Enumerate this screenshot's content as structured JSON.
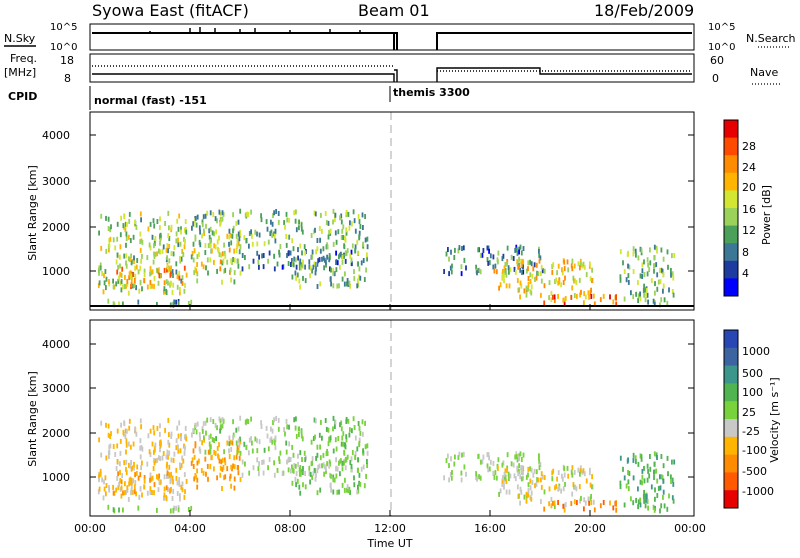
{
  "header": {
    "station": "Syowa East (fitACF)",
    "beam": "Beam 01",
    "date": "18/Feb/2009"
  },
  "strip": {
    "nsky_label": "N.Sky",
    "nsky_ticks": [
      "10^5",
      "10^0"
    ],
    "nsearch_label": "N.Search",
    "freq_label_1": "Freq.",
    "freq_label_2": "[MHz]",
    "freq_ticks": [
      "18",
      "8"
    ],
    "nave_label": "Nave",
    "nave_ticks": [
      "60",
      "0"
    ],
    "cpid_label": "CPID",
    "cpid_1": "normal (fast) -151",
    "cpid_2": "themis 3300"
  },
  "panels": {
    "ylabel": "Slant Range [km]",
    "yticks": [
      "4000",
      "3000",
      "2000",
      "1000"
    ],
    "xticks": [
      "00:00",
      "04:00",
      "08:00",
      "12:00",
      "16:00",
      "20:00",
      "00:00"
    ],
    "xlabel": "Time UT"
  },
  "power_bar": {
    "label": "Power [dB]",
    "ticks": [
      "28",
      "24",
      "20",
      "16",
      "12",
      "8",
      "4"
    ],
    "colors": [
      "#e60000",
      "#ff4b00",
      "#ff8c00",
      "#ffb400",
      "#d2e632",
      "#9bd25a",
      "#4ba05a",
      "#3c7896",
      "#1e3ca0",
      "#0000ff"
    ]
  },
  "velocity_bar": {
    "label": "Velocity [m s⁻¹]",
    "ticks": [
      "1000",
      "500",
      "100",
      "25",
      "-25",
      "-100",
      "-500",
      "-1000"
    ],
    "colors": [
      "#2846b4",
      "#3c64a0",
      "#3c968c",
      "#50b450",
      "#78d23c",
      "#c8c8c8",
      "#ffb400",
      "#ff8c00",
      "#ff5a00",
      "#e60000"
    ]
  },
  "chart_data": {
    "type": "heatmap",
    "x_range_hours_ut": [
      0,
      24
    ],
    "slant_range_km": [
      180,
      4500
    ],
    "power_db_range": [
      0,
      30
    ],
    "velocity_range_ms": [
      -1000,
      1000
    ],
    "patches": [
      {
        "t0": 0.0,
        "t1": 4.0,
        "r0": 180,
        "r1": 300,
        "power": 10,
        "velocity": 60
      },
      {
        "t0": 0.3,
        "t1": 3.8,
        "r0": 450,
        "r1": 2250,
        "power": 14,
        "velocity": -200
      },
      {
        "t0": 0.9,
        "t1": 4.0,
        "r0": 600,
        "r1": 1100,
        "power": 20,
        "velocity": -300
      },
      {
        "t0": 4.0,
        "t1": 6.0,
        "r0": 700,
        "r1": 1800,
        "power": 16,
        "velocity": -400
      },
      {
        "t0": 4.0,
        "t1": 8.0,
        "r0": 1500,
        "r1": 2300,
        "power": 12,
        "velocity": 25
      },
      {
        "t0": 6.0,
        "t1": 11.0,
        "r0": 1000,
        "r1": 1400,
        "power": 8,
        "velocity": 0
      },
      {
        "t0": 8.0,
        "t1": 11.0,
        "r0": 600,
        "r1": 2300,
        "power": 12,
        "velocity": 150
      },
      {
        "t0": 14.0,
        "t1": 18.0,
        "r0": 900,
        "r1": 1500,
        "power": 8,
        "velocity": 0
      },
      {
        "t0": 16.0,
        "t1": 20.0,
        "r0": 300,
        "r1": 1200,
        "power": 18,
        "velocity": -120
      },
      {
        "t0": 18.0,
        "t1": 21.0,
        "r0": 200,
        "r1": 400,
        "power": 24,
        "velocity": -500
      },
      {
        "t0": 21.0,
        "t1": 23.2,
        "r0": 200,
        "r1": 1500,
        "power": 12,
        "velocity": 300
      }
    ],
    "data_gap_hours_ut": [
      12.0,
      14.0
    ],
    "cpid_segments": [
      {
        "name": "normal (fast) -151",
        "start": 0.0,
        "end": 12.0
      },
      {
        "name": "themis 3300",
        "start": 12.0,
        "end": 24.0
      }
    ]
  }
}
